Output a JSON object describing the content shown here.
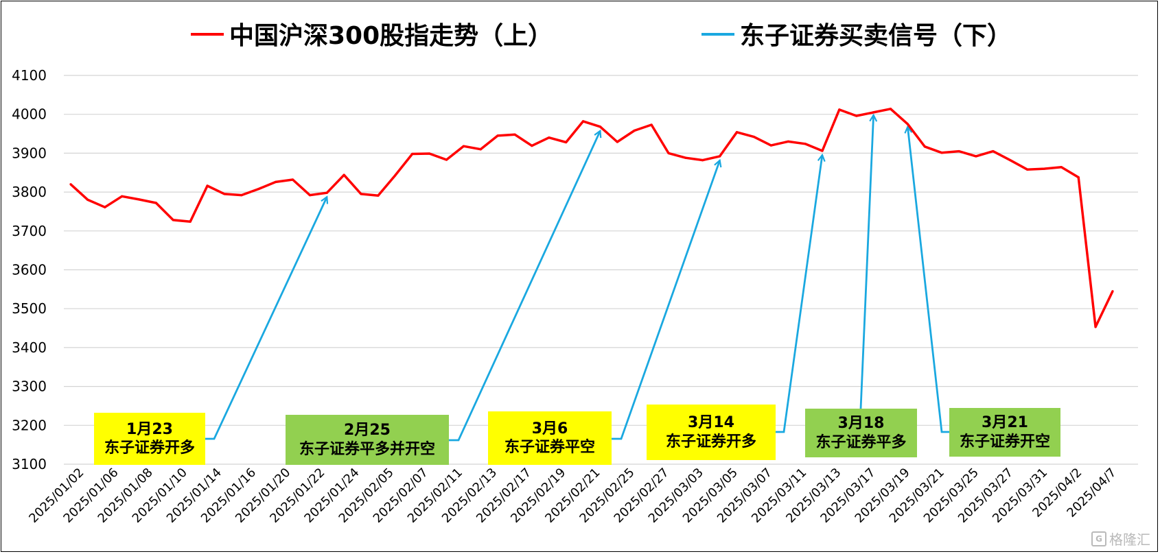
{
  "chart_data": {
    "type": "line",
    "legend": [
      {
        "name": "中国沪深300股指走势（上）",
        "color": "#ff0000"
      },
      {
        "name": "东子证券买卖信号（下）",
        "color": "#1aa8e0"
      }
    ],
    "legend_placement": "top",
    "ylim": [
      3100,
      4100
    ],
    "yticks": [
      3100,
      3200,
      3300,
      3400,
      3500,
      3600,
      3700,
      3800,
      3900,
      4000,
      4100
    ],
    "grid": true,
    "xtick_labels": [
      "2025/01/02",
      "2025/01/06",
      "2025/01/08",
      "2025/01/10",
      "2025/01/14",
      "2025/01/16",
      "2025/01/20",
      "2025/01/22",
      "2025/01/24",
      "2025/02/05",
      "2025/02/07",
      "2025/02/11",
      "2025/02/13",
      "2025/02/17",
      "2025/02/19",
      "2025/02/21",
      "2025/02/25",
      "2025/02/27",
      "2025/03/03",
      "2025/03/05",
      "2025/03/07",
      "2025/03/11",
      "2025/03/13",
      "2025/03/17",
      "2025/03/19",
      "2025/03/21",
      "2025/03/25",
      "2025/03/27",
      "2025/03/31",
      "2025/04/2",
      "2025/04/7"
    ],
    "series": [
      {
        "name": "中国沪深300股指走势（上）",
        "color": "#ff0000",
        "values": [
          3820,
          3780,
          3761,
          3789,
          3781,
          3772,
          3728,
          3724,
          3816,
          3795,
          3792,
          3808,
          3826,
          3832,
          3792,
          3798,
          3844,
          3795,
          3791,
          3843,
          3898,
          3899,
          3883,
          3918,
          3910,
          3945,
          3948,
          3919,
          3940,
          3928,
          3982,
          3968,
          3929,
          3958,
          3973,
          3900,
          3888,
          3882,
          3892,
          3954,
          3942,
          3920,
          3930,
          3924,
          3906,
          4012,
          3996,
          4005,
          4014,
          3975,
          3917,
          3901,
          3905,
          3892,
          3905,
          3882,
          3858,
          3860,
          3864,
          3838,
          3453,
          3545
        ]
      }
    ],
    "signals": [
      {
        "date": "1月23",
        "text": "东子证券开多",
        "bg": "#ffff00",
        "index": 15
      },
      {
        "date": "2月25",
        "text": "东子证券平多并开空",
        "bg": "#92d050",
        "index": 31
      },
      {
        "date": "3月6",
        "text": "东子证券平空",
        "bg": "#ffff00",
        "index": 38
      },
      {
        "date": "3月14",
        "text": "东子证券开多",
        "bg": "#ffff00",
        "index": 44
      },
      {
        "date": "3月18",
        "text": "东子证券平多",
        "bg": "#92d050",
        "index": 47
      },
      {
        "date": "3月21",
        "text": "东子证券开空",
        "bg": "#92d050",
        "index": 49
      }
    ]
  },
  "watermark": {
    "text": "格隆汇",
    "icon": "G-logo-icon"
  }
}
